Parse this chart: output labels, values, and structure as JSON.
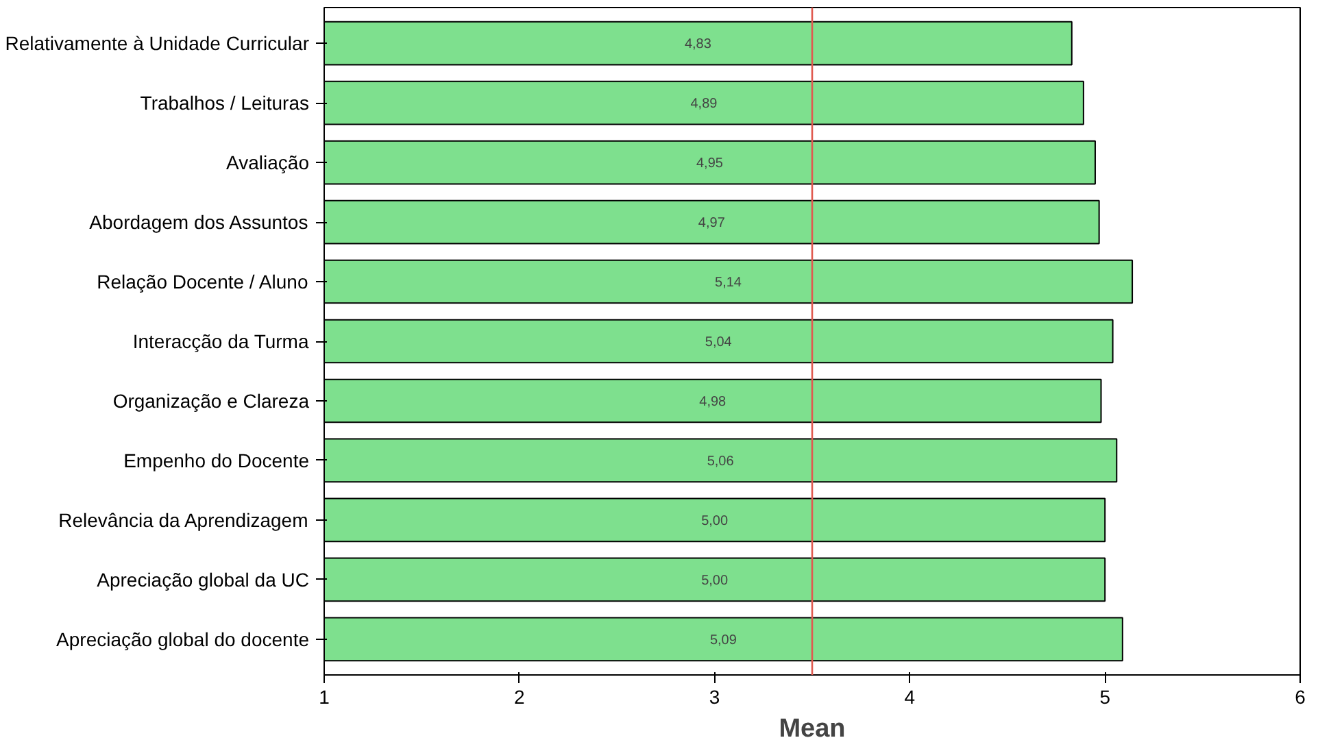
{
  "chart_data": {
    "type": "bar",
    "orientation": "horizontal",
    "xlabel": "Mean",
    "categories": [
      "Relativamente à Unidade Curricular",
      "Trabalhos / Leituras",
      "Avaliação",
      "Abordagem dos Assuntos",
      "Relação Docente / Aluno",
      "Interacção da Turma",
      "Organização e Clareza",
      "Empenho do Docente",
      "Relevância da Aprendizagem",
      "Apreciação global da UC",
      "Apreciação global do docente"
    ],
    "values": [
      4.83,
      4.89,
      4.95,
      4.97,
      5.14,
      5.04,
      4.98,
      5.06,
      5.0,
      5.0,
      5.09
    ],
    "value_labels": [
      "4,83",
      "4,89",
      "4,95",
      "4,97",
      "5,14",
      "5,04",
      "4,98",
      "5,06",
      "5,00",
      "5,00",
      "5,09"
    ],
    "color": "#7ee08e",
    "xlim": [
      1,
      6
    ],
    "xticks": [
      1,
      2,
      3,
      4,
      5,
      6
    ],
    "ref_lines": [
      {
        "axis": "x",
        "value": 3.5,
        "label": null,
        "color": "#e05a50"
      }
    ],
    "grid": false
  }
}
